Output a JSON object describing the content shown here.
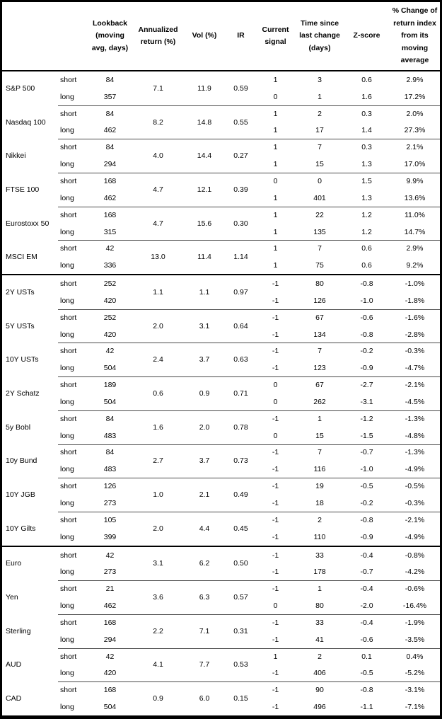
{
  "table": {
    "header": {
      "lookback": "Lookback\n(moving\navg, days)",
      "ann_return": "Annualized\nreturn (%)",
      "vol": "Vol (%)",
      "ir": "IR",
      "signal": "Current\nsignal",
      "time": "Time since\nlast change\n(days)",
      "zscore": "Z-score",
      "pct_change": "% Change of\nreturn index\nfrom its\nmoving\naverage"
    },
    "sections": [
      {
        "assets": [
          {
            "name": "S&P 500",
            "ann_return": "7.1",
            "vol": "11.9",
            "ir": "0.59",
            "short": {
              "label": "short",
              "lookback": "84",
              "signal": "1",
              "time": "3",
              "zscore": "0.6",
              "pct": "2.9%"
            },
            "long": {
              "label": "long",
              "lookback": "357",
              "signal": "0",
              "time": "1",
              "zscore": "1.6",
              "pct": "17.2%"
            }
          },
          {
            "name": "Nasdaq 100",
            "ann_return": "8.2",
            "vol": "14.8",
            "ir": "0.55",
            "short": {
              "label": "short",
              "lookback": "84",
              "signal": "1",
              "time": "2",
              "zscore": "0.3",
              "pct": "2.0%"
            },
            "long": {
              "label": "long",
              "lookback": "462",
              "signal": "1",
              "time": "17",
              "zscore": "1.4",
              "pct": "27.3%"
            }
          },
          {
            "name": "Nikkei",
            "ann_return": "4.0",
            "vol": "14.4",
            "ir": "0.27",
            "short": {
              "label": "short",
              "lookback": "84",
              "signal": "1",
              "time": "7",
              "zscore": "0.3",
              "pct": "2.1%"
            },
            "long": {
              "label": "long",
              "lookback": "294",
              "signal": "1",
              "time": "15",
              "zscore": "1.3",
              "pct": "17.0%"
            }
          },
          {
            "name": "FTSE 100",
            "ann_return": "4.7",
            "vol": "12.1",
            "ir": "0.39",
            "short": {
              "label": "short",
              "lookback": "168",
              "signal": "0",
              "time": "0",
              "zscore": "1.5",
              "pct": "9.9%"
            },
            "long": {
              "label": "long",
              "lookback": "462",
              "signal": "1",
              "time": "401",
              "zscore": "1.3",
              "pct": "13.6%"
            }
          },
          {
            "name": "Eurostoxx 50",
            "ann_return": "4.7",
            "vol": "15.6",
            "ir": "0.30",
            "short": {
              "label": "short",
              "lookback": "168",
              "signal": "1",
              "time": "22",
              "zscore": "1.2",
              "pct": "11.0%"
            },
            "long": {
              "label": "long",
              "lookback": "315",
              "signal": "1",
              "time": "135",
              "zscore": "1.2",
              "pct": "14.7%"
            }
          },
          {
            "name": "MSCI EM",
            "ann_return": "13.0",
            "vol": "11.4",
            "ir": "1.14",
            "short": {
              "label": "short",
              "lookback": "42",
              "signal": "1",
              "time": "7",
              "zscore": "0.6",
              "pct": "2.9%"
            },
            "long": {
              "label": "long",
              "lookback": "336",
              "signal": "1",
              "time": "75",
              "zscore": "0.6",
              "pct": "9.2%"
            }
          }
        ]
      },
      {
        "assets": [
          {
            "name": "2Y USTs",
            "ann_return": "1.1",
            "vol": "1.1",
            "ir": "0.97",
            "short": {
              "label": "short",
              "lookback": "252",
              "signal": "-1",
              "time": "80",
              "zscore": "-0.8",
              "pct": "-1.0%"
            },
            "long": {
              "label": "long",
              "lookback": "420",
              "signal": "-1",
              "time": "126",
              "zscore": "-1.0",
              "pct": "-1.8%"
            }
          },
          {
            "name": "5Y USTs",
            "ann_return": "2.0",
            "vol": "3.1",
            "ir": "0.64",
            "short": {
              "label": "short",
              "lookback": "252",
              "signal": "-1",
              "time": "67",
              "zscore": "-0.6",
              "pct": "-1.6%"
            },
            "long": {
              "label": "long",
              "lookback": "420",
              "signal": "-1",
              "time": "134",
              "zscore": "-0.8",
              "pct": "-2.8%"
            }
          },
          {
            "name": "10Y USTs",
            "ann_return": "2.4",
            "vol": "3.7",
            "ir": "0.63",
            "short": {
              "label": "short",
              "lookback": "42",
              "signal": "-1",
              "time": "7",
              "zscore": "-0.2",
              "pct": "-0.3%"
            },
            "long": {
              "label": "long",
              "lookback": "504",
              "signal": "-1",
              "time": "123",
              "zscore": "-0.9",
              "pct": "-4.7%"
            }
          },
          {
            "name": "2Y Schatz",
            "ann_return": "0.6",
            "vol": "0.9",
            "ir": "0.71",
            "short": {
              "label": "short",
              "lookback": "189",
              "signal": "0",
              "time": "67",
              "zscore": "-2.7",
              "pct": "-2.1%"
            },
            "long": {
              "label": "long",
              "lookback": "504",
              "signal": "0",
              "time": "262",
              "zscore": "-3.1",
              "pct": "-4.5%"
            }
          },
          {
            "name": "5y Bobl",
            "ann_return": "1.6",
            "vol": "2.0",
            "ir": "0.78",
            "short": {
              "label": "short",
              "lookback": "84",
              "signal": "-1",
              "time": "1",
              "zscore": "-1.2",
              "pct": "-1.3%"
            },
            "long": {
              "label": "long",
              "lookback": "483",
              "signal": "0",
              "time": "15",
              "zscore": "-1.5",
              "pct": "-4.8%"
            }
          },
          {
            "name": "10y Bund",
            "ann_return": "2.7",
            "vol": "3.7",
            "ir": "0.73",
            "short": {
              "label": "short",
              "lookback": "84",
              "signal": "-1",
              "time": "7",
              "zscore": "-0.7",
              "pct": "-1.3%"
            },
            "long": {
              "label": "long",
              "lookback": "483",
              "signal": "-1",
              "time": "116",
              "zscore": "-1.0",
              "pct": "-4.9%"
            }
          },
          {
            "name": "10Y JGB",
            "ann_return": "1.0",
            "vol": "2.1",
            "ir": "0.49",
            "short": {
              "label": "short",
              "lookback": "126",
              "signal": "-1",
              "time": "19",
              "zscore": "-0.5",
              "pct": "-0.5%"
            },
            "long": {
              "label": "long",
              "lookback": "273",
              "signal": "-1",
              "time": "18",
              "zscore": "-0.2",
              "pct": "-0.3%"
            }
          },
          {
            "name": "10Y Gilts",
            "ann_return": "2.0",
            "vol": "4.4",
            "ir": "0.45",
            "short": {
              "label": "short",
              "lookback": "105",
              "signal": "-1",
              "time": "2",
              "zscore": "-0.8",
              "pct": "-2.1%"
            },
            "long": {
              "label": "long",
              "lookback": "399",
              "signal": "-1",
              "time": "110",
              "zscore": "-0.9",
              "pct": "-4.9%"
            }
          }
        ]
      },
      {
        "assets": [
          {
            "name": "Euro",
            "ann_return": "3.1",
            "vol": "6.2",
            "ir": "0.50",
            "short": {
              "label": "short",
              "lookback": "42",
              "signal": "-1",
              "time": "33",
              "zscore": "-0.4",
              "pct": "-0.8%"
            },
            "long": {
              "label": "long",
              "lookback": "273",
              "signal": "-1",
              "time": "178",
              "zscore": "-0.7",
              "pct": "-4.2%"
            }
          },
          {
            "name": "Yen",
            "ann_return": "3.6",
            "vol": "6.3",
            "ir": "0.57",
            "short": {
              "label": "short",
              "lookback": "21",
              "signal": "-1",
              "time": "1",
              "zscore": "-0.4",
              "pct": "-0.6%"
            },
            "long": {
              "label": "long",
              "lookback": "462",
              "signal": "0",
              "time": "80",
              "zscore": "-2.0",
              "pct": "-16.4%"
            }
          },
          {
            "name": "Sterling",
            "ann_return": "2.2",
            "vol": "7.1",
            "ir": "0.31",
            "short": {
              "label": "short",
              "lookback": "168",
              "signal": "-1",
              "time": "33",
              "zscore": "-0.4",
              "pct": "-1.9%"
            },
            "long": {
              "label": "long",
              "lookback": "294",
              "signal": "-1",
              "time": "41",
              "zscore": "-0.6",
              "pct": "-3.5%"
            }
          },
          {
            "name": "AUD",
            "ann_return": "4.1",
            "vol": "7.7",
            "ir": "0.53",
            "short": {
              "label": "short",
              "lookback": "42",
              "signal": "1",
              "time": "2",
              "zscore": "0.1",
              "pct": "0.4%"
            },
            "long": {
              "label": "long",
              "lookback": "420",
              "signal": "-1",
              "time": "406",
              "zscore": "-0.5",
              "pct": "-5.2%"
            }
          },
          {
            "name": "CAD",
            "ann_return": "0.9",
            "vol": "6.0",
            "ir": "0.15",
            "short": {
              "label": "short",
              "lookback": "168",
              "signal": "-1",
              "time": "90",
              "zscore": "-0.8",
              "pct": "-3.1%"
            },
            "long": {
              "label": "long",
              "lookback": "504",
              "signal": "-1",
              "time": "496",
              "zscore": "-1.1",
              "pct": "-7.1%"
            }
          }
        ]
      }
    ]
  }
}
